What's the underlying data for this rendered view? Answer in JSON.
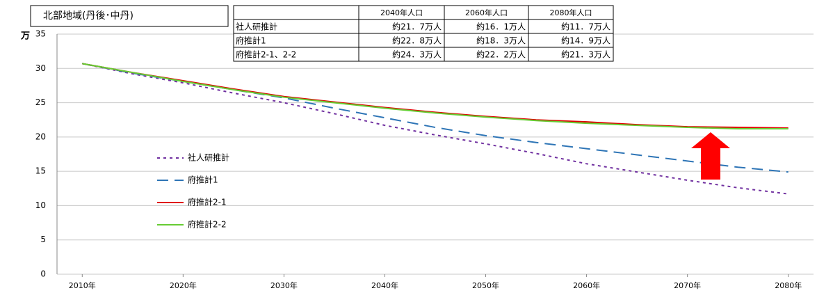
{
  "chart_data": {
    "type": "line",
    "title": "北部地域(丹後･中丹)",
    "y_unit": "万",
    "x": [
      2010,
      2015,
      2020,
      2025,
      2030,
      2035,
      2040,
      2045,
      2050,
      2055,
      2060,
      2065,
      2070,
      2075,
      2080
    ],
    "xlim": [
      2007.5,
      2082.5
    ],
    "xticks": [
      {
        "value": 2010,
        "label": "2010年"
      },
      {
        "value": 2020,
        "label": "2020年"
      },
      {
        "value": 2030,
        "label": "2030年"
      },
      {
        "value": 2040,
        "label": "2040年"
      },
      {
        "value": 2050,
        "label": "2050年"
      },
      {
        "value": 2060,
        "label": "2060年"
      },
      {
        "value": 2070,
        "label": "2070年"
      },
      {
        "value": 2080,
        "label": "2080年"
      }
    ],
    "ylim": [
      0,
      35
    ],
    "yticks": [
      0,
      5,
      10,
      15,
      20,
      25,
      30,
      35
    ],
    "grid": true,
    "legend": "left",
    "series": [
      {
        "name": "社人研推計",
        "color": "#7030a0",
        "dash": "4,5",
        "values": [
          30.7,
          29.2,
          27.9,
          26.4,
          25.0,
          23.4,
          21.7,
          20.3,
          19.0,
          17.6,
          16.1,
          14.9,
          13.7,
          12.6,
          11.7
        ]
      },
      {
        "name": "府推計1",
        "color": "#2e75b6",
        "dash": "16,9",
        "values": [
          30.7,
          29.3,
          28.1,
          26.9,
          25.7,
          24.2,
          22.8,
          21.4,
          20.2,
          19.2,
          18.3,
          17.4,
          16.5,
          15.6,
          14.9
        ]
      },
      {
        "name": "府推計2-1",
        "color": "#e00000",
        "dash": "none",
        "values": [
          30.7,
          29.4,
          28.2,
          27.0,
          25.9,
          25.1,
          24.3,
          23.6,
          23.0,
          22.5,
          22.2,
          21.8,
          21.5,
          21.4,
          21.3
        ]
      },
      {
        "name": "府推計2-2",
        "color": "#66cc33",
        "dash": "none",
        "values": [
          30.7,
          29.4,
          28.1,
          26.9,
          25.8,
          25.0,
          24.2,
          23.5,
          22.9,
          22.4,
          22.0,
          21.7,
          21.4,
          21.2,
          21.2
        ]
      }
    ]
  },
  "table": {
    "columns": [
      "2040年人口",
      "2060年人口",
      "2080年人口"
    ],
    "rows": [
      [
        "社人研推計",
        "約21．7万人",
        "約16．1万人",
        "約11．7万人"
      ],
      [
        "府推計1",
        "約22．8万人",
        "約18．3万人",
        "約14．9万人"
      ],
      [
        "府推計2-1、2-2",
        "約24．3万人",
        "約22．2万人",
        "約21．3万人"
      ]
    ]
  }
}
